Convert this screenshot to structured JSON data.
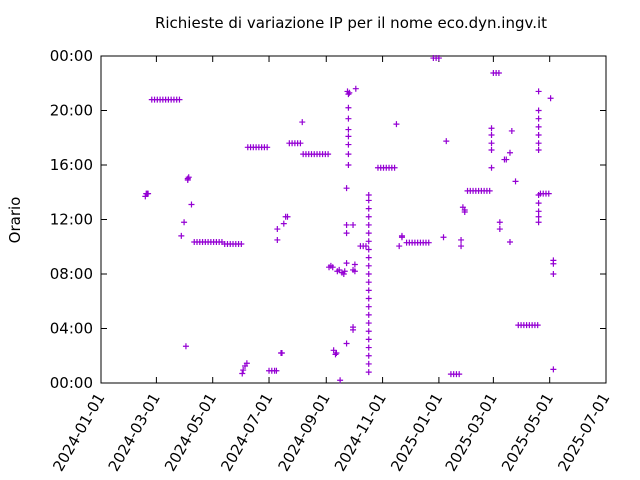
{
  "chart_data": {
    "type": "scatter",
    "title": "Richieste di variazione IP per il nome eco.dyn.ingv.it",
    "y_label": "Orario",
    "xlim": [
      "2024-01-01",
      "2025-07-01"
    ],
    "xticks": [
      "2024-01-01",
      "2024-03-01",
      "2024-05-01",
      "2024-07-01",
      "2024-09-01",
      "2024-11-01",
      "2025-01-01",
      "2025-03-01",
      "2025-05-01",
      "2025-07-01"
    ],
    "ylim": [
      0,
      24
    ],
    "yticks": [
      {
        "value": 0,
        "label": "00:00"
      },
      {
        "value": 4,
        "label": "04:00"
      },
      {
        "value": 8,
        "label": "08:00"
      },
      {
        "value": 12,
        "label": "12:00"
      },
      {
        "value": 16,
        "label": "16:00"
      },
      {
        "value": 20,
        "label": "20:00"
      },
      {
        "value": 24,
        "label": "00:00"
      }
    ],
    "series": [
      {
        "color": "#9400d3",
        "x": [
          "2024-02-18",
          "2024-02-19",
          "2024-02-20",
          "2024-02-21",
          "2024-02-25",
          "2024-02-28",
          "2024-03-02",
          "2024-03-05",
          "2024-03-08",
          "2024-03-11",
          "2024-03-14",
          "2024-03-17",
          "2024-03-20",
          "2024-03-23",
          "2024-03-26",
          "2024-03-28",
          "2024-03-31",
          "2024-04-02",
          "2024-04-04",
          "2024-04-05",
          "2024-04-04",
          "2024-04-08",
          "2024-04-11",
          "2024-04-14",
          "2024-04-17",
          "2024-04-20",
          "2024-04-23",
          "2024-04-26",
          "2024-04-29",
          "2024-05-02",
          "2024-05-05",
          "2024-05-08",
          "2024-05-11",
          "2024-05-14",
          "2024-05-17",
          "2024-05-20",
          "2024-05-23",
          "2024-05-26",
          "2024-05-29",
          "2024-06-01",
          "2024-06-02",
          "2024-06-03",
          "2024-06-05",
          "2024-06-07",
          "2024-06-08",
          "2024-06-11",
          "2024-06-14",
          "2024-06-17",
          "2024-06-20",
          "2024-06-23",
          "2024-06-26",
          "2024-06-29",
          "2024-07-01",
          "2024-07-04",
          "2024-07-07",
          "2024-07-09",
          "2024-07-10",
          "2024-07-10",
          "2024-07-14",
          "2024-07-15",
          "2024-07-17",
          "2024-07-19",
          "2024-07-21",
          "2024-07-23",
          "2024-07-26",
          "2024-07-29",
          "2024-08-01",
          "2024-08-04",
          "2024-08-06",
          "2024-08-07",
          "2024-08-10",
          "2024-08-13",
          "2024-08-16",
          "2024-08-19",
          "2024-08-22",
          "2024-08-25",
          "2024-08-28",
          "2024-08-31",
          "2024-09-03",
          "2024-09-04",
          "2024-09-06",
          "2024-09-08",
          "2024-09-09",
          "2024-09-11",
          "2024-09-12",
          "2024-09-13",
          "2024-09-15",
          "2024-09-16",
          "2024-09-18",
          "2024-09-20",
          "2024-09-21",
          "2024-09-23",
          "2024-09-23",
          "2024-09-23",
          "2024-09-23",
          "2024-09-23",
          "2024-09-24",
          "2024-09-26",
          "2024-09-25",
          "2024-09-25",
          "2024-09-25",
          "2024-09-25",
          "2024-09-25",
          "2024-09-25",
          "2024-09-25",
          "2024-09-25",
          "2024-09-30",
          "2024-09-30",
          "2024-09-30",
          "2024-09-30",
          "2024-10-02",
          "2024-10-02",
          "2024-10-03",
          "2024-10-08",
          "2024-10-11",
          "2024-10-14",
          "2024-10-17",
          "2024-10-17",
          "2024-10-17",
          "2024-10-17",
          "2024-10-17",
          "2024-10-17",
          "2024-10-17",
          "2024-10-17",
          "2024-10-17",
          "2024-10-17",
          "2024-10-17",
          "2024-10-17",
          "2024-10-17",
          "2024-10-17",
          "2024-10-17",
          "2024-10-17",
          "2024-10-17",
          "2024-10-17",
          "2024-10-17",
          "2024-10-17",
          "2024-10-17",
          "2024-10-17",
          "2024-10-17",
          "2024-10-27",
          "2024-10-30",
          "2024-11-02",
          "2024-11-05",
          "2024-11-08",
          "2024-11-11",
          "2024-11-14",
          "2024-11-16",
          "2024-11-19",
          "2024-11-22",
          "2024-11-22",
          "2024-11-27",
          "2024-11-30",
          "2024-12-03",
          "2024-12-06",
          "2024-12-09",
          "2024-12-12",
          "2024-12-15",
          "2024-12-18",
          "2024-12-21",
          "2024-12-26",
          "2024-12-29",
          "2025-01-01",
          "2025-01-06",
          "2025-01-09",
          "2025-01-14",
          "2025-01-17",
          "2025-01-20",
          "2025-01-23",
          "2025-01-25",
          "2025-01-25",
          "2025-01-27",
          "2025-01-29",
          "2025-01-29",
          "2025-02-01",
          "2025-02-04",
          "2025-02-07",
          "2025-02-10",
          "2025-02-13",
          "2025-02-16",
          "2025-02-19",
          "2025-02-22",
          "2025-02-25",
          "2025-02-27",
          "2025-02-27",
          "2025-02-27",
          "2025-02-27",
          "2025-02-27",
          "2025-03-01",
          "2025-03-04",
          "2025-03-07",
          "2025-03-08",
          "2025-03-08",
          "2025-03-13",
          "2025-03-15",
          "2025-03-19",
          "2025-03-19",
          "2025-03-21",
          "2025-03-25",
          "2025-03-28",
          "2025-03-31",
          "2025-04-03",
          "2025-04-06",
          "2025-04-09",
          "2025-04-12",
          "2025-04-15",
          "2025-04-18",
          "2025-04-19",
          "2025-04-19",
          "2025-04-19",
          "2025-04-19",
          "2025-04-19",
          "2025-04-19",
          "2025-04-19",
          "2025-04-19",
          "2025-04-19",
          "2025-04-19",
          "2025-04-19",
          "2025-04-19",
          "2025-04-21",
          "2025-04-24",
          "2025-04-27",
          "2025-04-30",
          "2025-05-02",
          "2025-05-05",
          "2025-05-05",
          "2025-05-05",
          "2025-05-05"
        ],
        "values": [
          13.7,
          13.9,
          13.9,
          13.9,
          20.8,
          20.8,
          20.8,
          20.8,
          20.8,
          20.8,
          20.8,
          20.8,
          20.8,
          20.8,
          20.8,
          10.8,
          11.8,
          2.7,
          15.0,
          15.1,
          14.9,
          13.1,
          10.35,
          10.35,
          10.35,
          10.35,
          10.35,
          10.35,
          10.35,
          10.35,
          10.35,
          10.35,
          10.35,
          10.2,
          10.2,
          10.2,
          10.2,
          10.2,
          10.2,
          10.2,
          0.7,
          0.95,
          1.25,
          1.45,
          17.3,
          17.3,
          17.3,
          17.3,
          17.3,
          17.3,
          17.3,
          17.3,
          0.9,
          0.9,
          0.9,
          0.9,
          10.5,
          11.3,
          2.2,
          2.2,
          11.7,
          12.2,
          12.2,
          17.6,
          17.6,
          17.6,
          17.6,
          17.6,
          19.15,
          16.8,
          16.8,
          16.8,
          16.8,
          16.8,
          16.8,
          16.8,
          16.8,
          16.8,
          16.8,
          8.5,
          8.6,
          8.5,
          2.4,
          2.1,
          2.2,
          8.2,
          8.3,
          0.2,
          8.1,
          8.0,
          8.2,
          14.3,
          2.9,
          8.8,
          11.0,
          11.6,
          21.4,
          21.3,
          16.0,
          16.8,
          17.5,
          18.1,
          18.6,
          19.4,
          20.2,
          21.2,
          11.6,
          8.3,
          3.9,
          4.1,
          8.7,
          8.2,
          21.6,
          10.05,
          10.05,
          10.05,
          0.8,
          1.4,
          2.0,
          2.6,
          3.2,
          3.8,
          4.4,
          5.0,
          5.6,
          6.2,
          6.8,
          7.4,
          8.0,
          8.6,
          9.2,
          9.8,
          10.4,
          11.0,
          11.6,
          12.2,
          12.8,
          13.4,
          13.8,
          15.8,
          15.8,
          15.8,
          15.8,
          15.8,
          15.8,
          15.8,
          19.0,
          10.05,
          10.8,
          10.7,
          10.3,
          10.3,
          10.3,
          10.3,
          10.3,
          10.3,
          10.3,
          10.3,
          10.3,
          23.85,
          23.85,
          23.85,
          10.7,
          17.75,
          0.65,
          0.65,
          0.65,
          0.65,
          10.5,
          10.05,
          12.9,
          12.7,
          12.55,
          14.1,
          14.1,
          14.1,
          14.1,
          14.1,
          14.1,
          14.1,
          14.1,
          14.1,
          18.7,
          18.2,
          17.6,
          17.1,
          15.8,
          22.75,
          22.75,
          22.75,
          11.8,
          11.3,
          16.4,
          16.4,
          16.9,
          10.35,
          18.5,
          14.8,
          4.25,
          4.25,
          4.25,
          4.25,
          4.25,
          4.25,
          4.25,
          4.25,
          21.4,
          20.0,
          19.4,
          18.8,
          18.2,
          17.6,
          17.1,
          13.8,
          13.2,
          12.6,
          12.2,
          11.8,
          13.9,
          13.9,
          13.9,
          13.9,
          20.9,
          9.0,
          8.75,
          8.0,
          1.0
        ]
      }
    ]
  }
}
